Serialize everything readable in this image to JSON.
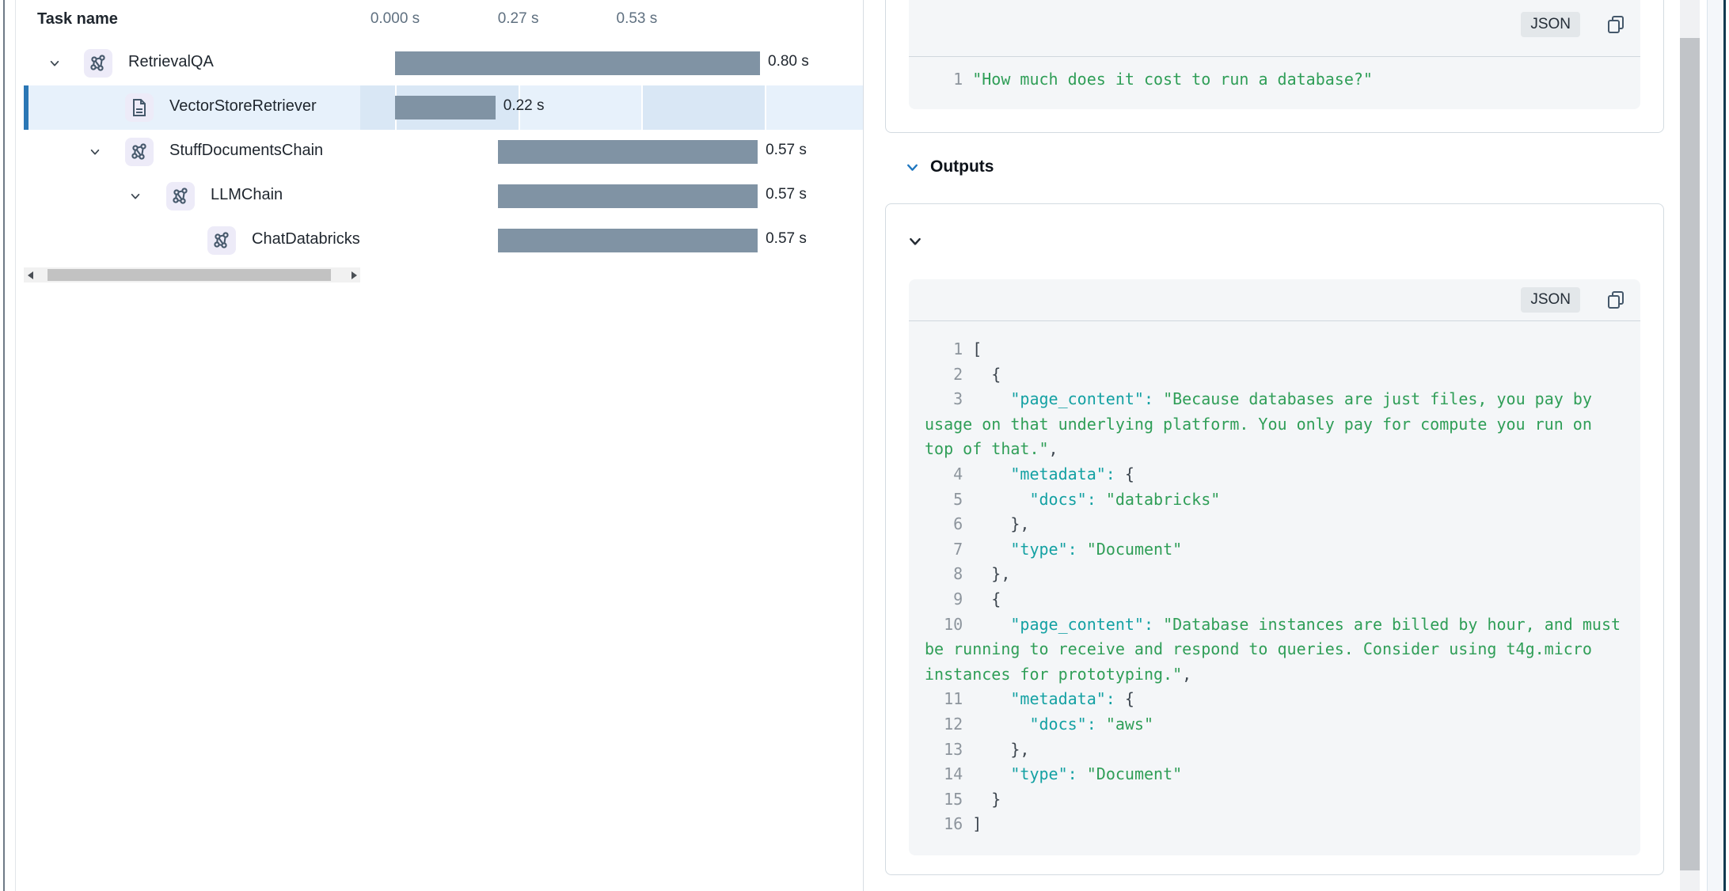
{
  "timeline": {
    "task_name_header": "Task name",
    "axis_ticks": [
      {
        "t": 0,
        "label": "0.000 s"
      },
      {
        "t": 0.27,
        "label": "0.27 s"
      },
      {
        "t": 0.53,
        "label": "0.53 s"
      }
    ],
    "rows": [
      {
        "name": "RetrievalQA",
        "icon": "chain",
        "level": 0,
        "has_chevron": true,
        "selected": false,
        "start_s": 0,
        "duration_s": 0.8,
        "duration_label": "0.80 s"
      },
      {
        "name": "VectorStoreRetriever",
        "icon": "document",
        "level": 1,
        "has_chevron": false,
        "selected": true,
        "start_s": 0,
        "duration_s": 0.22,
        "duration_label": "0.22 s"
      },
      {
        "name": "StuffDocumentsChain",
        "icon": "chain",
        "level": 1,
        "has_chevron": true,
        "selected": false,
        "start_s": 0.225,
        "duration_s": 0.57,
        "duration_label": "0.57 s"
      },
      {
        "name": "LLMChain",
        "icon": "chain",
        "level": 2,
        "has_chevron": true,
        "selected": false,
        "start_s": 0.225,
        "duration_s": 0.57,
        "duration_label": "0.57 s"
      },
      {
        "name": "ChatDatabricks",
        "icon": "chain",
        "level": 3,
        "has_chevron": false,
        "selected": false,
        "start_s": 0.225,
        "duration_s": 0.57,
        "duration_label": "0.57 s"
      }
    ]
  },
  "details": {
    "inputs_block": {
      "format_badge": "JSON",
      "lines": [
        {
          "n": 1,
          "segments": [
            [
              "str",
              "\"How much does it cost to run a database?\""
            ]
          ]
        }
      ]
    },
    "outputs_section": {
      "title": "Outputs",
      "block": {
        "format_badge": "JSON",
        "lines": [
          {
            "n": 1,
            "segments": [
              [
                "punc",
                "["
              ]
            ]
          },
          {
            "n": 2,
            "segments": [
              [
                "punc",
                "  {"
              ]
            ]
          },
          {
            "n": 3,
            "segments": [
              [
                "punc",
                "    "
              ],
              [
                "key",
                "\"page_content\":"
              ],
              [
                "punc",
                " "
              ],
              [
                "str",
                "\"Because databases are just files, you pay by usage on that underlying platform. You only pay for compute you run on top of that.\""
              ],
              [
                "punc",
                ","
              ]
            ]
          },
          {
            "n": 4,
            "segments": [
              [
                "punc",
                "    "
              ],
              [
                "key",
                "\"metadata\":"
              ],
              [
                "punc",
                " {"
              ]
            ]
          },
          {
            "n": 5,
            "segments": [
              [
                "punc",
                "      "
              ],
              [
                "key",
                "\"docs\":"
              ],
              [
                "punc",
                " "
              ],
              [
                "str",
                "\"databricks\""
              ]
            ]
          },
          {
            "n": 6,
            "segments": [
              [
                "punc",
                "    },"
              ]
            ]
          },
          {
            "n": 7,
            "segments": [
              [
                "punc",
                "    "
              ],
              [
                "key",
                "\"type\":"
              ],
              [
                "punc",
                " "
              ],
              [
                "str",
                "\"Document\""
              ]
            ]
          },
          {
            "n": 8,
            "segments": [
              [
                "punc",
                "  },"
              ]
            ]
          },
          {
            "n": 9,
            "segments": [
              [
                "punc",
                "  {"
              ]
            ]
          },
          {
            "n": 10,
            "segments": [
              [
                "punc",
                "    "
              ],
              [
                "key",
                "\"page_content\":"
              ],
              [
                "punc",
                " "
              ],
              [
                "str",
                "\"Database instances are billed by hour, and must be running to receive and respond to queries. Consider using t4g.micro instances for prototyping.\""
              ],
              [
                "punc",
                ","
              ]
            ]
          },
          {
            "n": 11,
            "segments": [
              [
                "punc",
                "    "
              ],
              [
                "key",
                "\"metadata\":"
              ],
              [
                "punc",
                " {"
              ]
            ]
          },
          {
            "n": 12,
            "segments": [
              [
                "punc",
                "      "
              ],
              [
                "key",
                "\"docs\":"
              ],
              [
                "punc",
                " "
              ],
              [
                "str",
                "\"aws\""
              ]
            ]
          },
          {
            "n": 13,
            "segments": [
              [
                "punc",
                "    },"
              ]
            ]
          },
          {
            "n": 14,
            "segments": [
              [
                "punc",
                "    "
              ],
              [
                "key",
                "\"type\":"
              ],
              [
                "punc",
                " "
              ],
              [
                "str",
                "\"Document\""
              ]
            ]
          },
          {
            "n": 15,
            "segments": [
              [
                "punc",
                "  }"
              ]
            ]
          },
          {
            "n": 16,
            "segments": [
              [
                "punc",
                "]"
              ]
            ]
          }
        ]
      }
    }
  },
  "colors": {
    "bar": "#8093a4",
    "selection_bg": "#e7f1fb",
    "selection_band": "#d9e7f5",
    "selection_border": "#2b77b5",
    "json_key": "#14a1a3",
    "json_string": "#2f9e57",
    "outputs_chevron": "#2077c0"
  }
}
